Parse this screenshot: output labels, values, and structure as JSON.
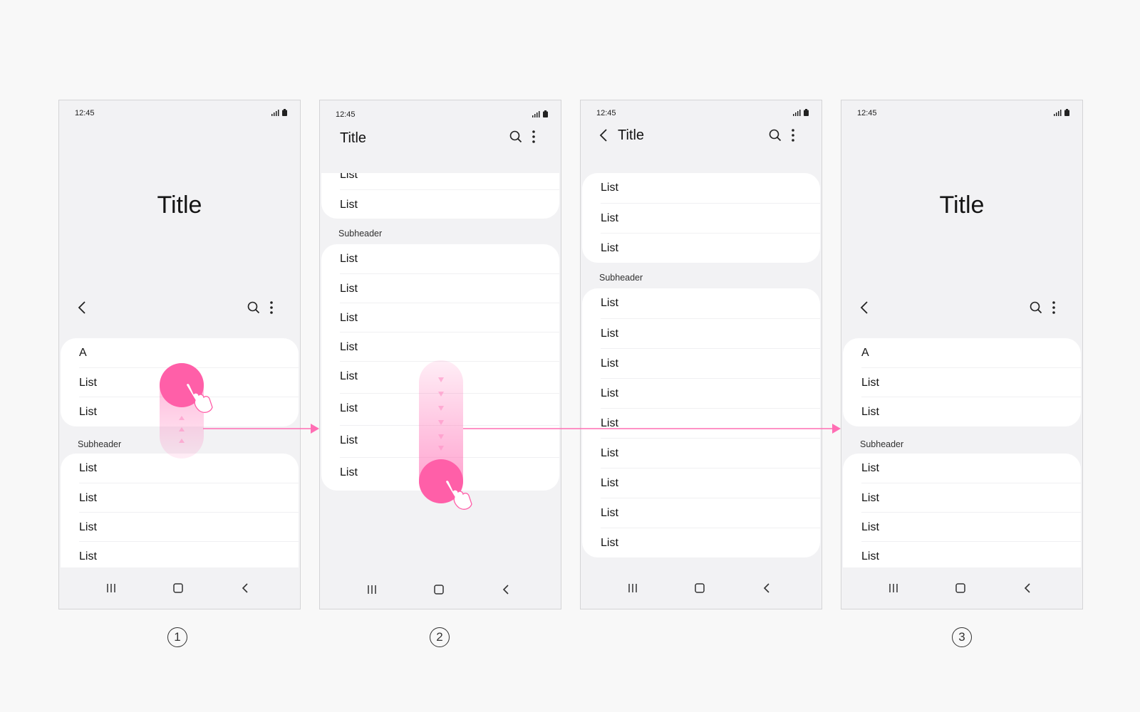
{
  "status": {
    "time": "12:45"
  },
  "screen1": {
    "title": "Title",
    "index_item": "A",
    "rows_a": [
      "List",
      "List"
    ],
    "subheader": "Subheader",
    "rows_b": [
      "List",
      "List",
      "List",
      "List"
    ]
  },
  "screen2": {
    "title": "Title",
    "rows_a": [
      "List",
      "List"
    ],
    "subheader": "Subheader",
    "rows_b": [
      "List",
      "List",
      "List",
      "List",
      "List",
      "List",
      "List",
      "List"
    ]
  },
  "screen3": {
    "title": "Title",
    "rows_a": [
      "List",
      "List",
      "List"
    ],
    "subheader": "Subheader",
    "rows_b": [
      "List",
      "List",
      "List",
      "List",
      "List",
      "List",
      "List",
      "List",
      "List"
    ]
  },
  "screen4": {
    "title": "Title",
    "index_item": "A",
    "rows_a": [
      "List",
      "List"
    ],
    "subheader": "Subheader",
    "rows_b": [
      "List",
      "List",
      "List",
      "List"
    ]
  },
  "step_labels": [
    "1",
    "2",
    "3"
  ],
  "colors": {
    "accent": "#ff5fa8",
    "arrow": "#ff6eb4",
    "screen_bg": "#f2f2f4",
    "card": "#ffffff"
  },
  "icons": [
    "signal-icon",
    "battery-icon",
    "back-arrow-icon",
    "search-icon",
    "more-vert-icon",
    "recents-icon",
    "home-icon",
    "nav-back-icon",
    "tap-hand-icon"
  ]
}
